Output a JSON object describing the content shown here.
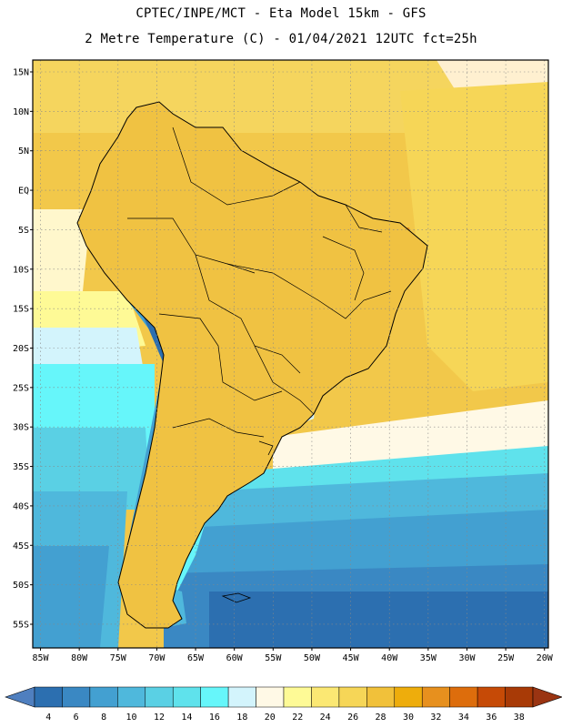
{
  "title_line1": "CPTEC/INPE/MCT -  Eta Model 15km - GFS",
  "title_line2": "2 Metre Temperature (C) - 01/04/2021 12UTC fct=25h",
  "map": {
    "lat_labels": [
      "15N",
      "10N",
      "5N",
      "EQ",
      "5S",
      "10S",
      "15S",
      "20S",
      "25S",
      "30S",
      "35S",
      "40S",
      "45S",
      "50S",
      "55S"
    ],
    "lon_labels": [
      "85W",
      "80W",
      "75W",
      "70W",
      "65W",
      "60W",
      "55W",
      "50W",
      "45W",
      "40W",
      "35W",
      "30W",
      "25W",
      "20W"
    ],
    "lat_range": [
      -58,
      16.5
    ],
    "lon_range": [
      -86,
      -19.5
    ]
  },
  "colorbar": {
    "labels": [
      "4",
      "6",
      "8",
      "10",
      "12",
      "14",
      "16",
      "18",
      "20",
      "22",
      "24",
      "26",
      "28",
      "30",
      "32",
      "34",
      "36",
      "38"
    ],
    "colors": [
      "#2c6fb0",
      "#3a88c3",
      "#43a0d1",
      "#4fb8dc",
      "#5ad0e4",
      "#5fe2ec",
      "#66f6fa",
      "#d3f4fc",
      "#fff9e6",
      "#fefa96",
      "#fbe873",
      "#f6d657",
      "#f1c13a",
      "#eead0c",
      "#e7901e",
      "#dd6d0c",
      "#c64a06",
      "#a83a06"
    ],
    "under_color": "#4f7fbf",
    "over_color": "#9a3412"
  }
}
